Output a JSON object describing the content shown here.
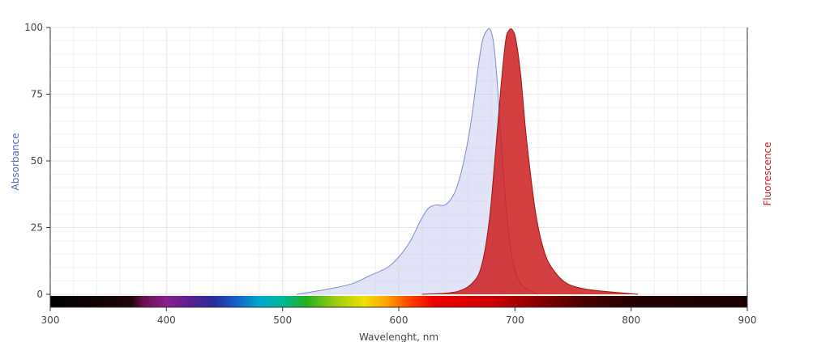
{
  "chart_data": {
    "type": "area",
    "title": "",
    "xlabel": "Wavelenght, nm",
    "ylabel": "Absorbance",
    "y2label": "Fluorescence",
    "xlim": [
      300,
      900
    ],
    "ylim": [
      0,
      100
    ],
    "x_ticks": [
      300,
      400,
      500,
      600,
      700,
      800,
      900
    ],
    "y_ticks": [
      0,
      25,
      50,
      75,
      100
    ],
    "grid": true,
    "spectrum_band": true,
    "series": [
      {
        "color": "#c8cdee",
        "stroke": "#7f88cc",
        "axis": "left",
        "x": [
          512,
          540,
          560,
          575,
          590,
          600,
          610,
          618,
          625,
          632,
          640,
          648,
          655,
          662,
          668,
          672,
          676,
          679,
          682,
          685,
          688,
          692,
          696,
          700,
          705,
          710,
          715,
          720
        ],
        "y": [
          0,
          2,
          4,
          7,
          10,
          14,
          20,
          27,
          32,
          33.5,
          33.5,
          38,
          48,
          64,
          84,
          95,
          99,
          99,
          93,
          78,
          58,
          35,
          18,
          9,
          4,
          2,
          1,
          0
        ]
      },
      {
        "color": "#cc1f1f",
        "stroke": "#9a1515",
        "axis": "right",
        "x": [
          620,
          650,
          665,
          672,
          678,
          683,
          688,
          692,
          695,
          698,
          701,
          705,
          710,
          718,
          726,
          735,
          745,
          760,
          780,
          806
        ],
        "y": [
          0,
          1,
          5,
          12,
          28,
          52,
          78,
          95,
          99,
          99,
          95,
          82,
          58,
          30,
          15,
          8,
          4,
          2,
          1,
          0
        ]
      }
    ]
  }
}
